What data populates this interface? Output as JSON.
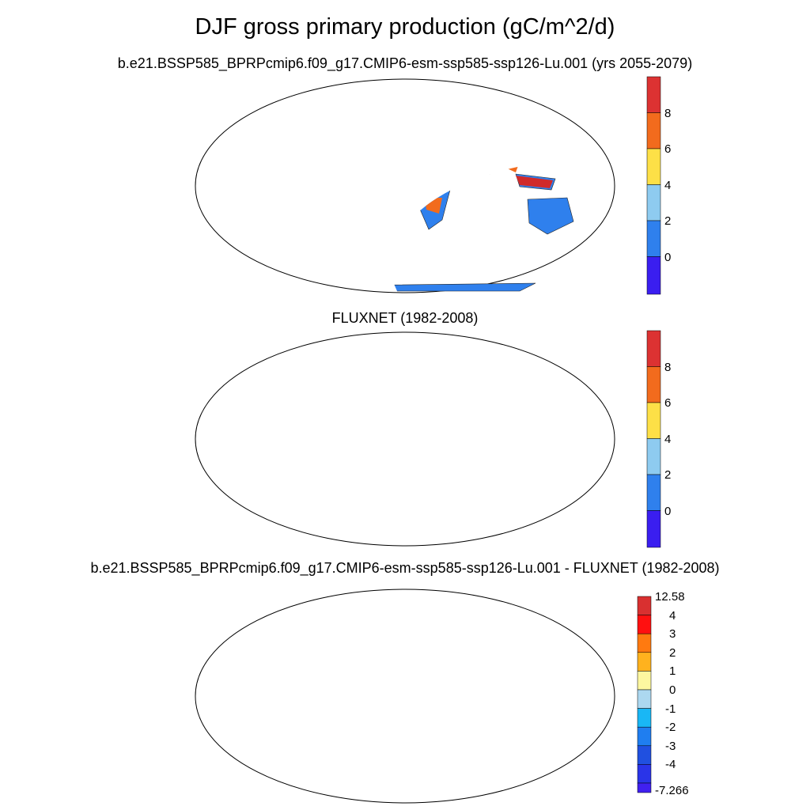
{
  "main_title": "DJF gross primary production (gC/m^2/d)",
  "panels": [
    {
      "title": "b.e21.BSSP585_BPRPcmip6.f09_g17.CMIP6-esm-ssp585-ssp126-Lu.001 (yrs 2055-2079)",
      "colorbar": {
        "ticks": [
          "8",
          "6",
          "4",
          "2",
          "0"
        ],
        "colors": [
          "#dc3232",
          "#f26b1d",
          "#fde047",
          "#8ecbf0",
          "#2f80ed",
          "#3a1ef0"
        ]
      }
    },
    {
      "title": "FLUXNET (1982-2008)",
      "colorbar": {
        "ticks": [
          "8",
          "6",
          "4",
          "2",
          "0"
        ],
        "colors": [
          "#dc3232",
          "#f26b1d",
          "#fde047",
          "#8ecbf0",
          "#2f80ed",
          "#3a1ef0"
        ]
      }
    },
    {
      "title": "b.e21.BSSP585_BPRPcmip6.f09_g17.CMIP6-esm-ssp585-ssp126-Lu.001 - FLUXNET (1982-2008)",
      "colorbar": {
        "ticks": [
          "12.58",
          "4",
          "3",
          "2",
          "1",
          "0",
          "-1",
          "-2",
          "-3",
          "-4",
          "-7.266"
        ],
        "colors": [
          "#d93030",
          "#ff1010",
          "#ff7a10",
          "#ffb21e",
          "#fdf7a0",
          "#acd8f0",
          "#19b7f5",
          "#1f7ef0",
          "#2050e0",
          "#2a34e8",
          "#4020f0"
        ]
      }
    }
  ]
}
